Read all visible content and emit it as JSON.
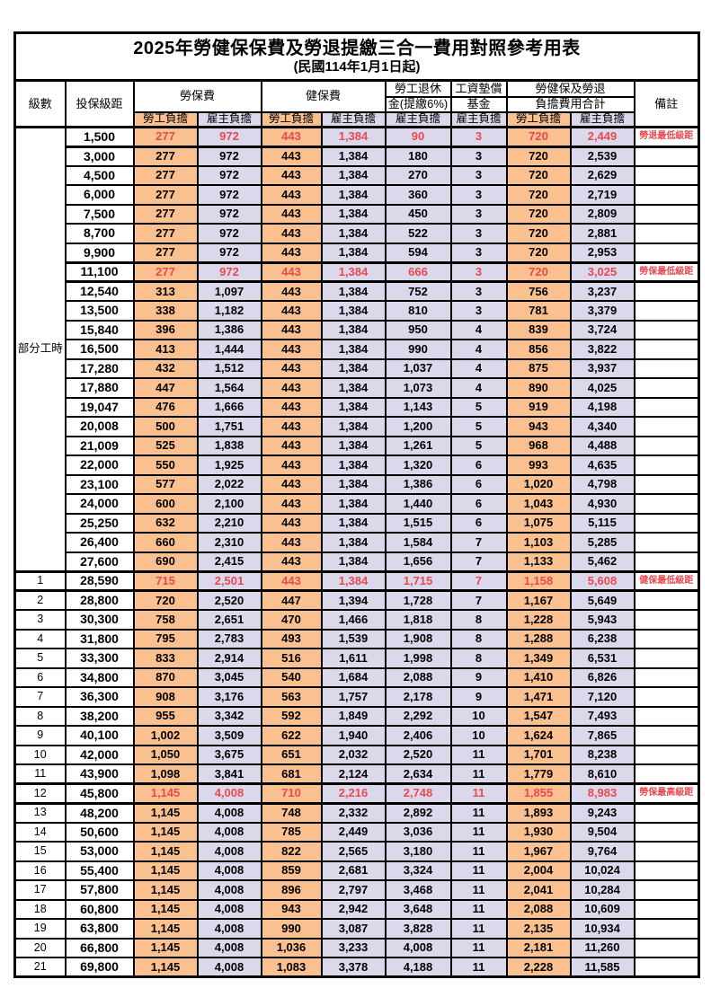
{
  "title": "2025年勞健保保費及勞退提繳三合一費用對照參考用表",
  "subtitle": "(民國114年1月1日起)",
  "columns": {
    "level": "級數",
    "bracket": "投保級距",
    "labor": "勞保費",
    "health": "健保費",
    "pension_line1": "勞工退休",
    "pension_line2": "金(提繳6%)",
    "wage_fund_line1": "工資墊償",
    "wage_fund_line2": "基金",
    "total_line1": "勞健保及勞退",
    "total_line2": "負擔費用合計",
    "remark": "備註",
    "employee": "勞工負擔",
    "employer": "雇主負擔"
  },
  "part_time_group": {
    "label": "部分工時",
    "span": 23
  },
  "colors": {
    "employee_bg": "#FAC090",
    "employer_bg": "#DCD8EC",
    "highlight_text": "#E8494F",
    "border": "#000000"
  },
  "rows": [
    {
      "level": null,
      "bracket": "1,500",
      "cells": [
        "277",
        "972",
        "443",
        "1,384",
        "90",
        "3",
        "720",
        "2,449"
      ],
      "remark": "勞退最低級距",
      "highlight": true
    },
    {
      "level": null,
      "bracket": "3,000",
      "cells": [
        "277",
        "972",
        "443",
        "1,384",
        "180",
        "3",
        "720",
        "2,539"
      ],
      "remark": "",
      "highlight": false
    },
    {
      "level": null,
      "bracket": "4,500",
      "cells": [
        "277",
        "972",
        "443",
        "1,384",
        "270",
        "3",
        "720",
        "2,629"
      ],
      "remark": "",
      "highlight": false
    },
    {
      "level": null,
      "bracket": "6,000",
      "cells": [
        "277",
        "972",
        "443",
        "1,384",
        "360",
        "3",
        "720",
        "2,719"
      ],
      "remark": "",
      "highlight": false
    },
    {
      "level": null,
      "bracket": "7,500",
      "cells": [
        "277",
        "972",
        "443",
        "1,384",
        "450",
        "3",
        "720",
        "2,809"
      ],
      "remark": "",
      "highlight": false
    },
    {
      "level": null,
      "bracket": "8,700",
      "cells": [
        "277",
        "972",
        "443",
        "1,384",
        "522",
        "3",
        "720",
        "2,881"
      ],
      "remark": "",
      "highlight": false
    },
    {
      "level": null,
      "bracket": "9,900",
      "cells": [
        "277",
        "972",
        "443",
        "1,384",
        "594",
        "3",
        "720",
        "2,953"
      ],
      "remark": "",
      "highlight": false
    },
    {
      "level": null,
      "bracket": "11,100",
      "cells": [
        "277",
        "972",
        "443",
        "1,384",
        "666",
        "3",
        "720",
        "3,025"
      ],
      "remark": "勞保最低級距",
      "highlight": true
    },
    {
      "level": null,
      "bracket": "12,540",
      "cells": [
        "313",
        "1,097",
        "443",
        "1,384",
        "752",
        "3",
        "756",
        "3,237"
      ],
      "remark": "",
      "highlight": false
    },
    {
      "level": null,
      "bracket": "13,500",
      "cells": [
        "338",
        "1,182",
        "443",
        "1,384",
        "810",
        "3",
        "781",
        "3,379"
      ],
      "remark": "",
      "highlight": false
    },
    {
      "level": null,
      "bracket": "15,840",
      "cells": [
        "396",
        "1,386",
        "443",
        "1,384",
        "950",
        "4",
        "839",
        "3,724"
      ],
      "remark": "",
      "highlight": false
    },
    {
      "level": null,
      "bracket": "16,500",
      "cells": [
        "413",
        "1,444",
        "443",
        "1,384",
        "990",
        "4",
        "856",
        "3,822"
      ],
      "remark": "",
      "highlight": false
    },
    {
      "level": null,
      "bracket": "17,280",
      "cells": [
        "432",
        "1,512",
        "443",
        "1,384",
        "1,037",
        "4",
        "875",
        "3,937"
      ],
      "remark": "",
      "highlight": false
    },
    {
      "level": null,
      "bracket": "17,880",
      "cells": [
        "447",
        "1,564",
        "443",
        "1,384",
        "1,073",
        "4",
        "890",
        "4,025"
      ],
      "remark": "",
      "highlight": false
    },
    {
      "level": null,
      "bracket": "19,047",
      "cells": [
        "476",
        "1,666",
        "443",
        "1,384",
        "1,143",
        "5",
        "919",
        "4,198"
      ],
      "remark": "",
      "highlight": false
    },
    {
      "level": null,
      "bracket": "20,008",
      "cells": [
        "500",
        "1,751",
        "443",
        "1,384",
        "1,200",
        "5",
        "943",
        "4,340"
      ],
      "remark": "",
      "highlight": false
    },
    {
      "level": null,
      "bracket": "21,009",
      "cells": [
        "525",
        "1,838",
        "443",
        "1,384",
        "1,261",
        "5",
        "968",
        "4,488"
      ],
      "remark": "",
      "highlight": false
    },
    {
      "level": null,
      "bracket": "22,000",
      "cells": [
        "550",
        "1,925",
        "443",
        "1,384",
        "1,320",
        "6",
        "993",
        "4,635"
      ],
      "remark": "",
      "highlight": false
    },
    {
      "level": null,
      "bracket": "23,100",
      "cells": [
        "577",
        "2,022",
        "443",
        "1,384",
        "1,386",
        "6",
        "1,020",
        "4,798"
      ],
      "remark": "",
      "highlight": false
    },
    {
      "level": null,
      "bracket": "24,000",
      "cells": [
        "600",
        "2,100",
        "443",
        "1,384",
        "1,440",
        "6",
        "1,043",
        "4,930"
      ],
      "remark": "",
      "highlight": false
    },
    {
      "level": null,
      "bracket": "25,250",
      "cells": [
        "632",
        "2,210",
        "443",
        "1,384",
        "1,515",
        "6",
        "1,075",
        "5,115"
      ],
      "remark": "",
      "highlight": false
    },
    {
      "level": null,
      "bracket": "26,400",
      "cells": [
        "660",
        "2,310",
        "443",
        "1,384",
        "1,584",
        "7",
        "1,103",
        "5,285"
      ],
      "remark": "",
      "highlight": false
    },
    {
      "level": null,
      "bracket": "27,600",
      "cells": [
        "690",
        "2,415",
        "443",
        "1,384",
        "1,656",
        "7",
        "1,133",
        "5,462"
      ],
      "remark": "",
      "highlight": false
    },
    {
      "level": "1",
      "bracket": "28,590",
      "cells": [
        "715",
        "2,501",
        "443",
        "1,384",
        "1,715",
        "7",
        "1,158",
        "5,608"
      ],
      "remark": "健保最低級距",
      "highlight": true
    },
    {
      "level": "2",
      "bracket": "28,800",
      "cells": [
        "720",
        "2,520",
        "447",
        "1,394",
        "1,728",
        "7",
        "1,167",
        "5,649"
      ],
      "remark": "",
      "highlight": false
    },
    {
      "level": "3",
      "bracket": "30,300",
      "cells": [
        "758",
        "2,651",
        "470",
        "1,466",
        "1,818",
        "8",
        "1,228",
        "5,943"
      ],
      "remark": "",
      "highlight": false
    },
    {
      "level": "4",
      "bracket": "31,800",
      "cells": [
        "795",
        "2,783",
        "493",
        "1,539",
        "1,908",
        "8",
        "1,288",
        "6,238"
      ],
      "remark": "",
      "highlight": false
    },
    {
      "level": "5",
      "bracket": "33,300",
      "cells": [
        "833",
        "2,914",
        "516",
        "1,611",
        "1,998",
        "8",
        "1,349",
        "6,531"
      ],
      "remark": "",
      "highlight": false
    },
    {
      "level": "6",
      "bracket": "34,800",
      "cells": [
        "870",
        "3,045",
        "540",
        "1,684",
        "2,088",
        "9",
        "1,410",
        "6,826"
      ],
      "remark": "",
      "highlight": false
    },
    {
      "level": "7",
      "bracket": "36,300",
      "cells": [
        "908",
        "3,176",
        "563",
        "1,757",
        "2,178",
        "9",
        "1,471",
        "7,120"
      ],
      "remark": "",
      "highlight": false
    },
    {
      "level": "8",
      "bracket": "38,200",
      "cells": [
        "955",
        "3,342",
        "592",
        "1,849",
        "2,292",
        "10",
        "1,547",
        "7,493"
      ],
      "remark": "",
      "highlight": false
    },
    {
      "level": "9",
      "bracket": "40,100",
      "cells": [
        "1,002",
        "3,509",
        "622",
        "1,940",
        "2,406",
        "10",
        "1,624",
        "7,865"
      ],
      "remark": "",
      "highlight": false
    },
    {
      "level": "10",
      "bracket": "42,000",
      "cells": [
        "1,050",
        "3,675",
        "651",
        "2,032",
        "2,520",
        "11",
        "1,701",
        "8,238"
      ],
      "remark": "",
      "highlight": false
    },
    {
      "level": "11",
      "bracket": "43,900",
      "cells": [
        "1,098",
        "3,841",
        "681",
        "2,124",
        "2,634",
        "11",
        "1,779",
        "8,610"
      ],
      "remark": "",
      "highlight": false
    },
    {
      "level": "12",
      "bracket": "45,800",
      "cells": [
        "1,145",
        "4,008",
        "710",
        "2,216",
        "2,748",
        "11",
        "1,855",
        "8,983"
      ],
      "remark": "勞保最高級距",
      "highlight": true
    },
    {
      "level": "13",
      "bracket": "48,200",
      "cells": [
        "1,145",
        "4,008",
        "748",
        "2,332",
        "2,892",
        "11",
        "1,893",
        "9,243"
      ],
      "remark": "",
      "highlight": false
    },
    {
      "level": "14",
      "bracket": "50,600",
      "cells": [
        "1,145",
        "4,008",
        "785",
        "2,449",
        "3,036",
        "11",
        "1,930",
        "9,504"
      ],
      "remark": "",
      "highlight": false
    },
    {
      "level": "15",
      "bracket": "53,000",
      "cells": [
        "1,145",
        "4,008",
        "822",
        "2,565",
        "3,180",
        "11",
        "1,967",
        "9,764"
      ],
      "remark": "",
      "highlight": false
    },
    {
      "level": "16",
      "bracket": "55,400",
      "cells": [
        "1,145",
        "4,008",
        "859",
        "2,681",
        "3,324",
        "11",
        "2,004",
        "10,024"
      ],
      "remark": "",
      "highlight": false
    },
    {
      "level": "17",
      "bracket": "57,800",
      "cells": [
        "1,145",
        "4,008",
        "896",
        "2,797",
        "3,468",
        "11",
        "2,041",
        "10,284"
      ],
      "remark": "",
      "highlight": false
    },
    {
      "level": "18",
      "bracket": "60,800",
      "cells": [
        "1,145",
        "4,008",
        "943",
        "2,942",
        "3,648",
        "11",
        "2,088",
        "10,609"
      ],
      "remark": "",
      "highlight": false
    },
    {
      "level": "19",
      "bracket": "63,800",
      "cells": [
        "1,145",
        "4,008",
        "990",
        "3,087",
        "3,828",
        "11",
        "2,135",
        "10,934"
      ],
      "remark": "",
      "highlight": false
    },
    {
      "level": "20",
      "bracket": "66,800",
      "cells": [
        "1,145",
        "4,008",
        "1,036",
        "3,233",
        "4,008",
        "11",
        "2,181",
        "11,260"
      ],
      "remark": "",
      "highlight": false
    },
    {
      "level": "21",
      "bracket": "69,800",
      "cells": [
        "1,145",
        "4,008",
        "1,083",
        "3,378",
        "4,188",
        "11",
        "2,228",
        "11,585"
      ],
      "remark": "",
      "highlight": false
    }
  ]
}
